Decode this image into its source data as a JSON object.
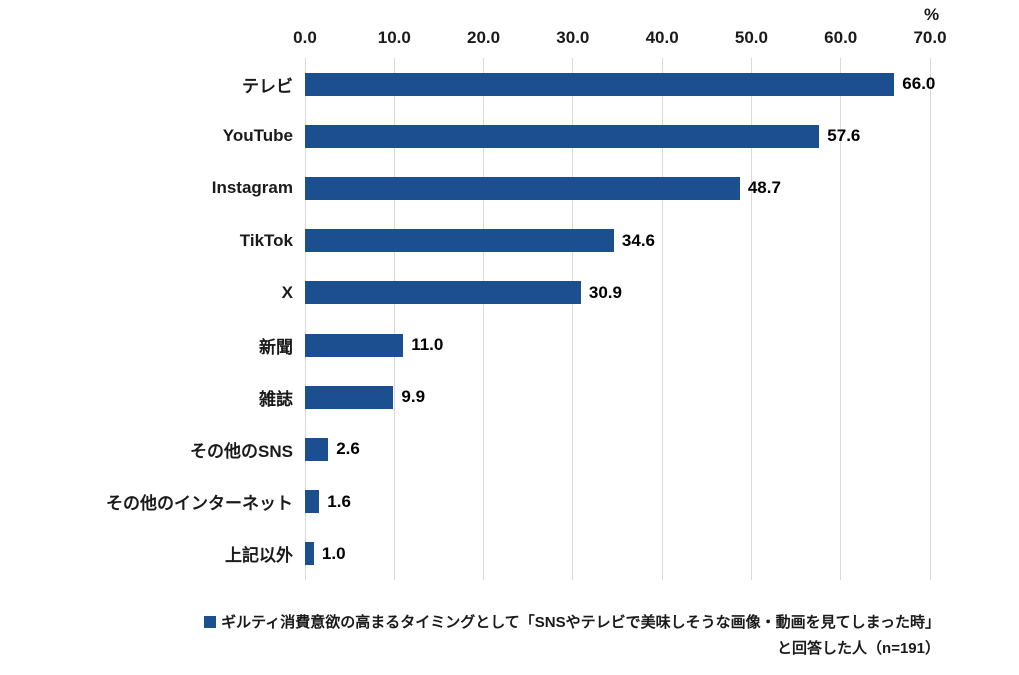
{
  "chart_data": {
    "type": "bar",
    "orientation": "horizontal",
    "title": "",
    "xlabel": "",
    "ylabel": "",
    "unit_label": "%",
    "xlim": [
      0,
      70
    ],
    "xticks": [
      "0.0",
      "10.0",
      "20.0",
      "30.0",
      "40.0",
      "50.0",
      "60.0",
      "70.0"
    ],
    "grid": true,
    "categories": [
      "テレビ",
      "YouTube",
      "Instagram",
      "TikTok",
      "X",
      "新聞",
      "雑誌",
      "その他のSNS",
      "その他のインターネット",
      "上記以外"
    ],
    "values": [
      66.0,
      57.6,
      48.7,
      34.6,
      30.9,
      11.0,
      9.9,
      2.6,
      1.6,
      1.0
    ],
    "value_decimals": 1,
    "bar_color": "#1b4f8f",
    "gridline_color": "#d9d9d9",
    "legend": {
      "position": "bottom",
      "line1": "ギルティ消費意欲の高まるタイミングとして「SNSやテレビで美味しそうな画像・動画を見てしまった時」",
      "line2": "と回答した人（n=191）"
    }
  }
}
